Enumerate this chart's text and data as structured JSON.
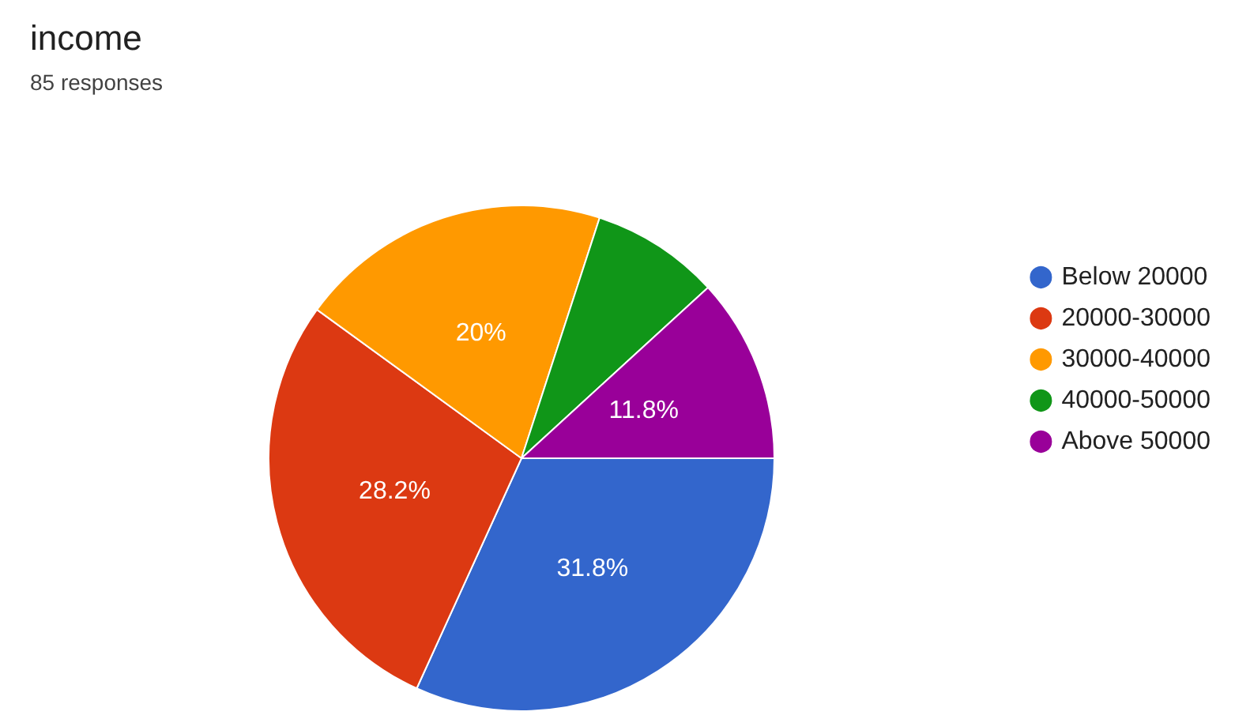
{
  "chart_data": {
    "type": "pie",
    "title": "income",
    "subtitle": "85 responses",
    "categories": [
      "Below 20000",
      "20000-30000",
      "30000-40000",
      "40000-50000",
      "Above 50000"
    ],
    "values": [
      31.8,
      28.2,
      20,
      8.2,
      11.8
    ],
    "colors": [
      "#3366cc",
      "#dc3912",
      "#ff9900",
      "#109618",
      "#990099"
    ],
    "value_labels": [
      "31.8%",
      "28.2%",
      "20%",
      null,
      "11.8%"
    ],
    "legend": "right"
  }
}
